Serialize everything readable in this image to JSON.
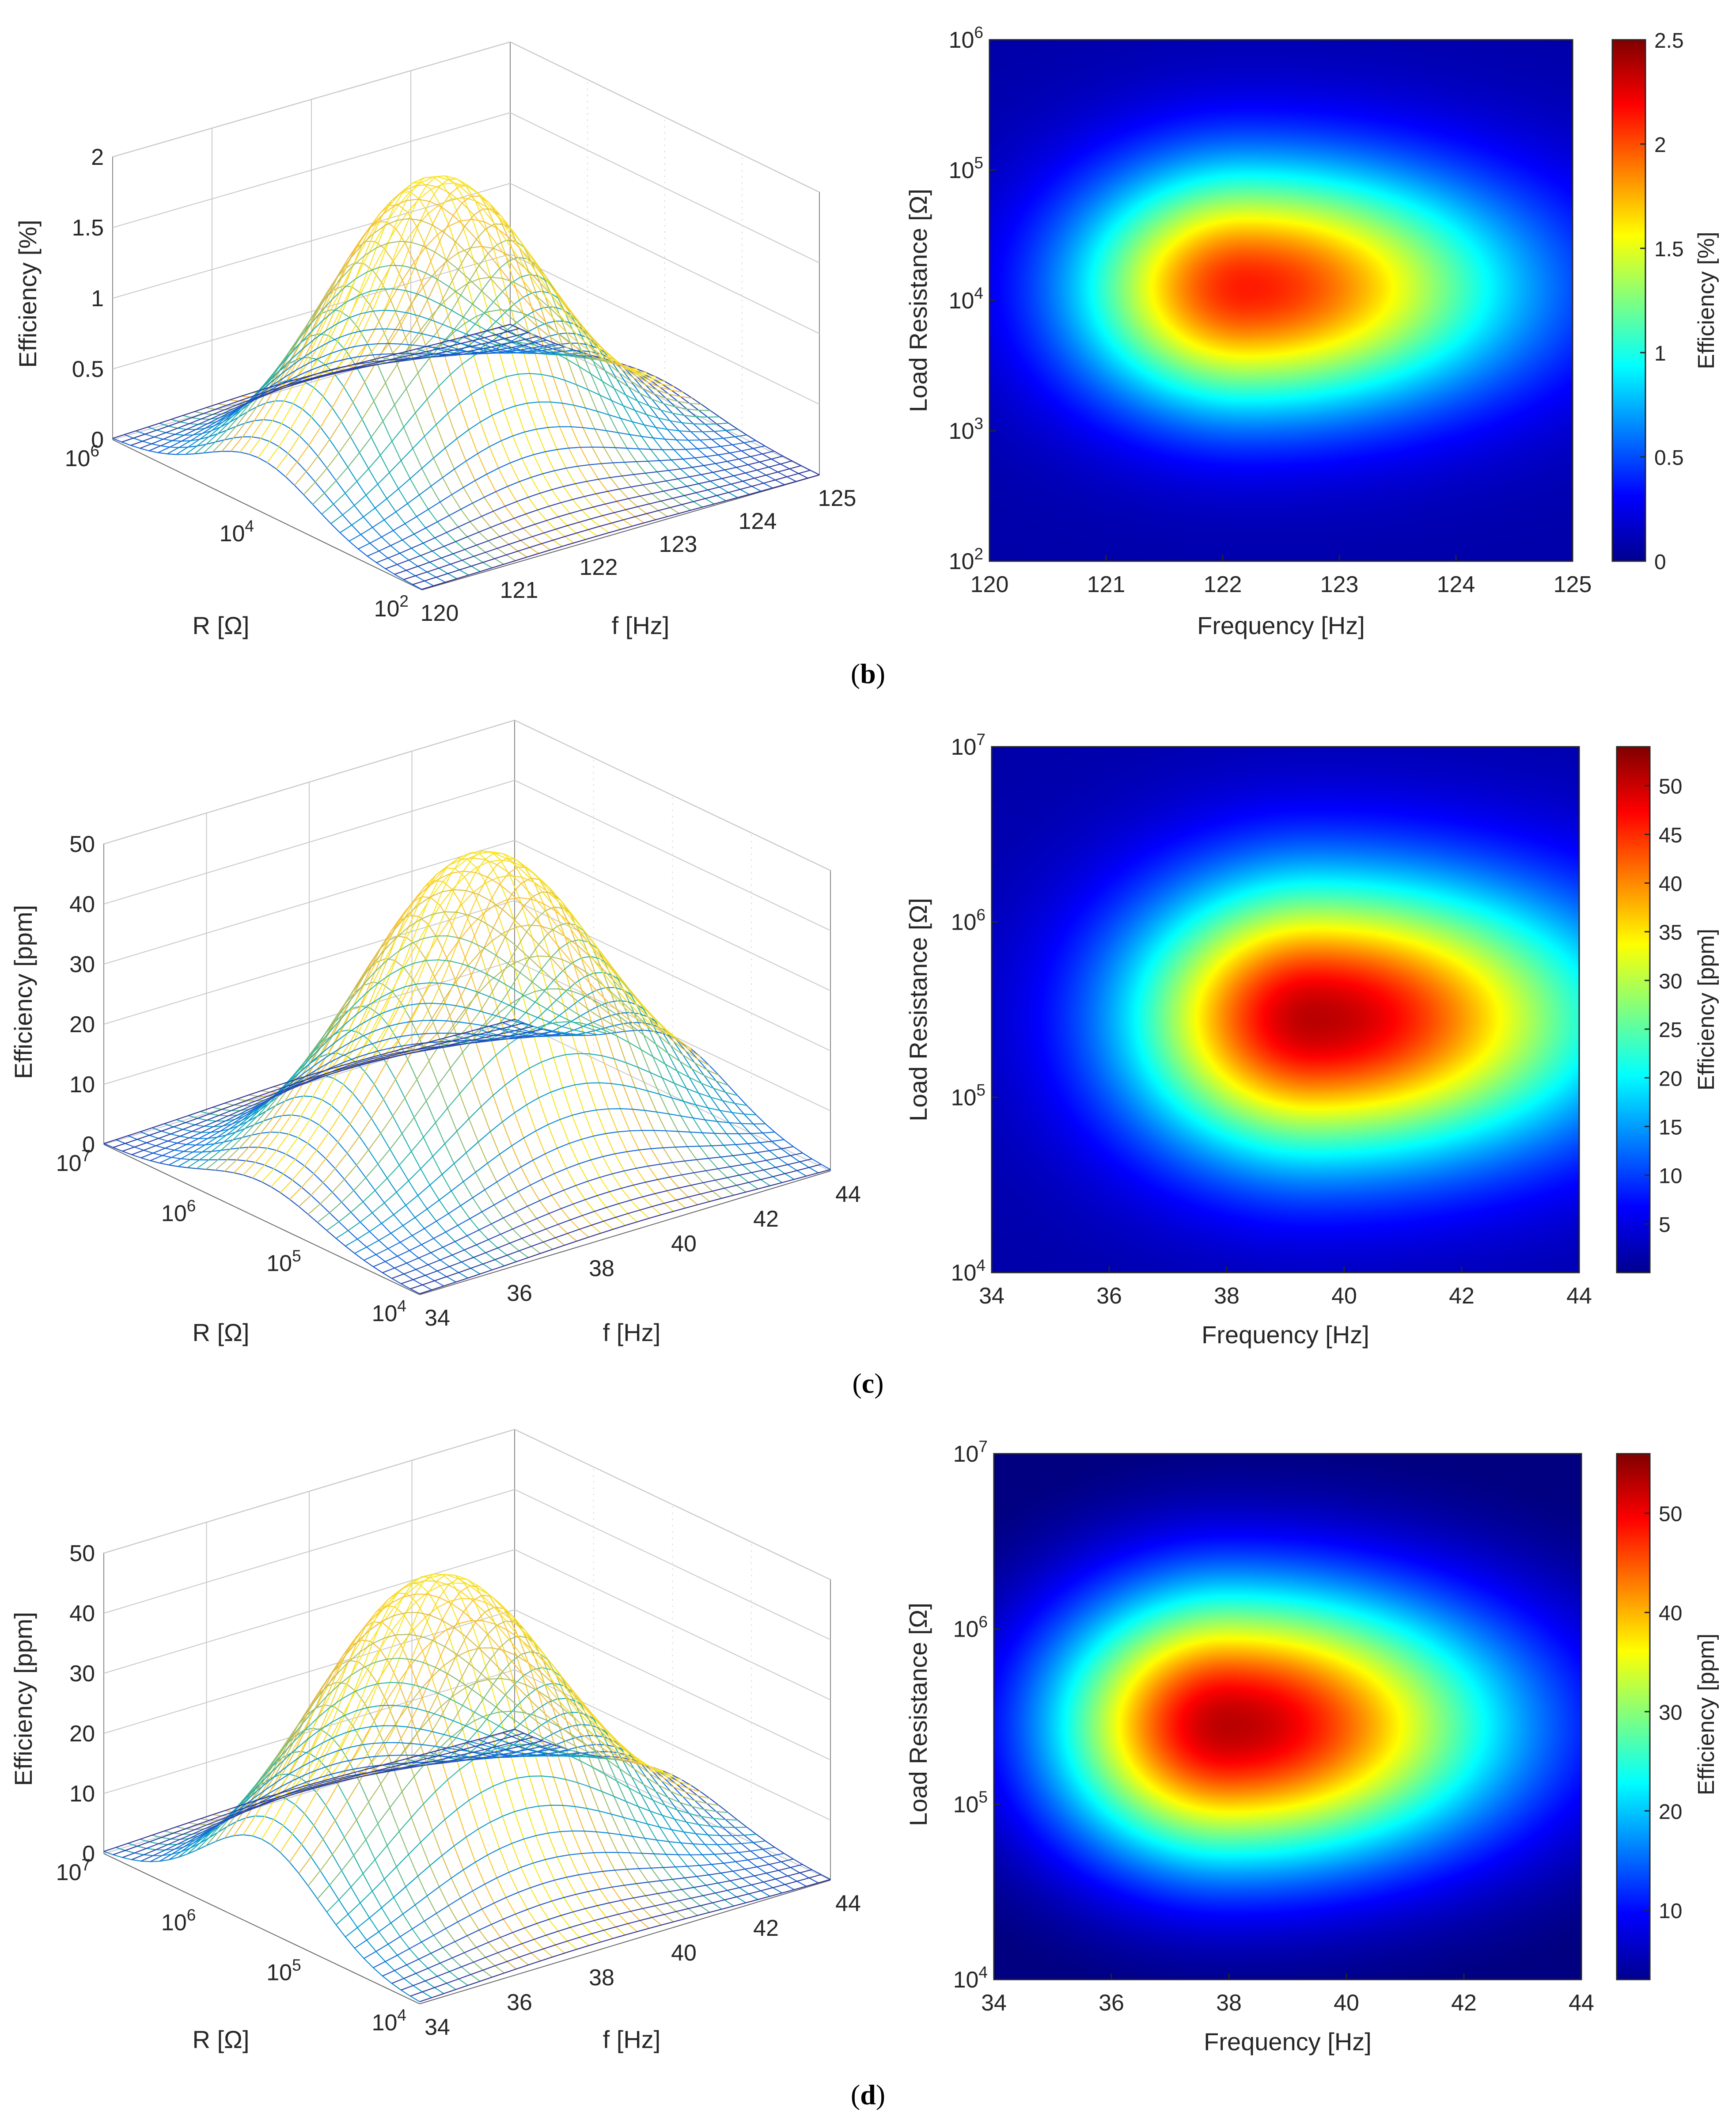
{
  "panels": [
    {
      "id": "b",
      "caption_label": "b",
      "surface": {
        "zlabel": "Efficiency [%]",
        "xlabel": "f [Hz]",
        "ylabel": "R [Ω]",
        "z_ticks": [
          "0",
          "0.5",
          "1",
          "1.5",
          "2"
        ],
        "f_ticks": [
          "120",
          "121",
          "122",
          "123",
          "124",
          "125"
        ],
        "r_ticks": [
          {
            "base": "10",
            "exp": "2"
          },
          {
            "base": "10",
            "exp": "4"
          },
          {
            "base": "10",
            "exp": "6"
          }
        ]
      },
      "heatmap": {
        "xlabel": "Frequency [Hz]",
        "ylabel": "Load Resistance [Ω]",
        "colorbar_label": "Efficiency [%]",
        "x_ticks": [
          "120",
          "121",
          "122",
          "123",
          "124",
          "125"
        ],
        "y_ticks": [
          {
            "base": "10",
            "exp": "2"
          },
          {
            "base": "10",
            "exp": "3"
          },
          {
            "base": "10",
            "exp": "4"
          },
          {
            "base": "10",
            "exp": "5"
          },
          {
            "base": "10",
            "exp": "6"
          }
        ],
        "colorbar_ticks": [
          "0",
          "0.5",
          "1",
          "1.5",
          "2",
          "2.5"
        ]
      }
    },
    {
      "id": "c",
      "caption_label": "c",
      "surface": {
        "zlabel": "Efficiency [ppm]",
        "xlabel": "f [Hz]",
        "ylabel": "R [Ω]",
        "z_ticks": [
          "0",
          "10",
          "20",
          "30",
          "40",
          "50"
        ],
        "f_ticks": [
          "34",
          "36",
          "38",
          "40",
          "42",
          "44"
        ],
        "r_ticks": [
          {
            "base": "10",
            "exp": "4"
          },
          {
            "base": "10",
            "exp": "5"
          },
          {
            "base": "10",
            "exp": "6"
          },
          {
            "base": "10",
            "exp": "7"
          }
        ]
      },
      "heatmap": {
        "xlabel": "Frequency [Hz]",
        "ylabel": "Load Resistance [Ω]",
        "colorbar_label": "Efficiency [ppm]",
        "x_ticks": [
          "34",
          "36",
          "38",
          "40",
          "42",
          "44"
        ],
        "y_ticks": [
          {
            "base": "10",
            "exp": "4"
          },
          {
            "base": "10",
            "exp": "5"
          },
          {
            "base": "10",
            "exp": "6"
          },
          {
            "base": "10",
            "exp": "7"
          }
        ],
        "colorbar_ticks": [
          "5",
          "10",
          "15",
          "20",
          "25",
          "30",
          "35",
          "40",
          "45",
          "50"
        ]
      }
    },
    {
      "id": "d",
      "caption_label": "d",
      "surface": {
        "zlabel": "Efficiency [ppm]",
        "xlabel": "f [Hz]",
        "ylabel": "R [Ω]",
        "z_ticks": [
          "0",
          "10",
          "20",
          "30",
          "40",
          "50"
        ],
        "f_ticks": [
          "34",
          "36",
          "38",
          "40",
          "42",
          "44"
        ],
        "r_ticks": [
          {
            "base": "10",
            "exp": "4"
          },
          {
            "base": "10",
            "exp": "5"
          },
          {
            "base": "10",
            "exp": "6"
          },
          {
            "base": "10",
            "exp": "7"
          }
        ]
      },
      "heatmap": {
        "xlabel": "Frequency [Hz]",
        "ylabel": "Load Resistance [Ω]",
        "colorbar_label": "Efficiency [ppm]",
        "x_ticks": [
          "34",
          "36",
          "38",
          "40",
          "42",
          "44"
        ],
        "y_ticks": [
          {
            "base": "10",
            "exp": "4"
          },
          {
            "base": "10",
            "exp": "5"
          },
          {
            "base": "10",
            "exp": "6"
          },
          {
            "base": "10",
            "exp": "7"
          }
        ],
        "colorbar_ticks": [
          "10",
          "20",
          "30",
          "40",
          "50"
        ]
      }
    }
  ],
  "chart_data": [
    {
      "panel": "b",
      "type": "surface",
      "title": "",
      "xlabel": "f [Hz]",
      "ylabel": "R [Ω]",
      "zlabel": "Efficiency [%]",
      "x_range": [
        120,
        125
      ],
      "r_log10_range": [
        2,
        6
      ],
      "z_range": [
        0,
        2
      ],
      "peak": {
        "f": 122.2,
        "R_log10": 4.1,
        "efficiency": 2.0
      },
      "width": {
        "f": 1.2,
        "R_log10": 0.7
      }
    },
    {
      "panel": "b",
      "type": "heatmap",
      "xlabel": "Frequency [Hz]",
      "ylabel": "Load Resistance [Ω]",
      "colorbar_label": "Efficiency [%]",
      "x_range": [
        120,
        125
      ],
      "y_log10_range": [
        2,
        6
      ],
      "color_range": [
        0,
        2.5
      ],
      "peak": {
        "f": 122.2,
        "R_log10": 4.1,
        "efficiency": 2.2
      },
      "width": {
        "f": 1.25,
        "R_log10": 0.65
      }
    },
    {
      "panel": "c",
      "type": "surface",
      "title": "",
      "xlabel": "f [Hz]",
      "ylabel": "R [Ω]",
      "zlabel": "Efficiency [ppm]",
      "x_range": [
        34,
        44
      ],
      "r_log10_range": [
        4,
        7
      ],
      "z_range": [
        0,
        50
      ],
      "peak": {
        "f": 39.3,
        "R_log10": 5.5,
        "efficiency": 50
      },
      "width": {
        "f": 2.6,
        "R_log10": 0.55
      }
    },
    {
      "panel": "c",
      "type": "heatmap",
      "xlabel": "Frequency [Hz]",
      "ylabel": "Load Resistance [Ω]",
      "colorbar_label": "Efficiency [ppm]",
      "x_range": [
        34,
        44
      ],
      "y_log10_range": [
        4,
        7
      ],
      "color_range": [
        0,
        54
      ],
      "peak": {
        "f": 39.5,
        "R_log10": 5.45,
        "efficiency": 53
      },
      "width": {
        "f": 2.7,
        "R_log10": 0.55
      }
    },
    {
      "panel": "d",
      "type": "surface",
      "title": "",
      "xlabel": "f [Hz]",
      "ylabel": "R [Ω]",
      "zlabel": "Efficiency [ppm]",
      "x_range": [
        34,
        44
      ],
      "r_log10_range": [
        4,
        7
      ],
      "z_range": [
        0,
        50
      ],
      "peak": {
        "f": 38.2,
        "R_log10": 5.5,
        "efficiency": 50
      },
      "width": {
        "f": 2.7,
        "R_log10": 0.55
      }
    },
    {
      "panel": "d",
      "type": "heatmap",
      "xlabel": "Frequency [Hz]",
      "ylabel": "Load Resistance [Ω]",
      "colorbar_label": "Efficiency [ppm]",
      "x_range": [
        34,
        44
      ],
      "y_log10_range": [
        4,
        7
      ],
      "color_range": [
        3,
        56
      ],
      "peak": {
        "f": 38.0,
        "R_log10": 5.45,
        "efficiency": 55
      },
      "width": {
        "f": 2.6,
        "R_log10": 0.55
      }
    }
  ]
}
